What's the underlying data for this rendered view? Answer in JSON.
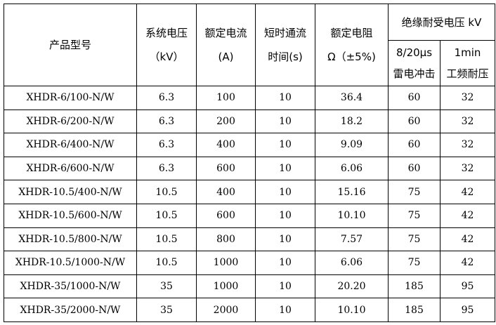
{
  "header": {
    "model": "产品型号",
    "voltage": [
      "系统电压",
      "（kV）"
    ],
    "current": [
      "额定电流",
      "(A)"
    ],
    "time": [
      "短时通流",
      "时间(s)"
    ],
    "resistance": [
      "额定电阻",
      "Ω（±5%)"
    ],
    "insulation": "绝缘耐受电压 kV",
    "impulse": [
      "8/20μs",
      "雷电冲击"
    ],
    "power_freq": [
      "1min",
      "工频耐压"
    ]
  },
  "rows": [
    [
      "XHDR-6/100-N/W",
      "6.3",
      "100",
      "10",
      "36.4",
      "60",
      "32"
    ],
    [
      "XHDR-6/200-N/W",
      "6.3",
      "200",
      "10",
      "18.2",
      "60",
      "32"
    ],
    [
      "XHDR-6/400-N/W",
      "6.3",
      "400",
      "10",
      "9.09",
      "60",
      "32"
    ],
    [
      "XHDR-6/600-N/W",
      "6.3",
      "600",
      "10",
      "6.06",
      "60",
      "32"
    ],
    [
      "XHDR-10.5/400-N/W",
      "10.5",
      "400",
      "10",
      "15.16",
      "75",
      "42"
    ],
    [
      "XHDR-10.5/600-N/W",
      "10.5",
      "600",
      "10",
      "10.10",
      "75",
      "42"
    ],
    [
      "XHDR-10.5/800-N/W",
      "10.5",
      "800",
      "10",
      "7.57",
      "75",
      "42"
    ],
    [
      "XHDR-10.5/1000-N/W",
      "10.5",
      "1000",
      "10",
      "6.06",
      "75",
      "42"
    ],
    [
      "XHDR-35/1000-N/W",
      "35",
      "1000",
      "10",
      "20.20",
      "185",
      "95"
    ],
    [
      "XHDR-35/2000-N/W",
      "35",
      "2000",
      "10",
      "10.10",
      "185",
      "95"
    ]
  ]
}
